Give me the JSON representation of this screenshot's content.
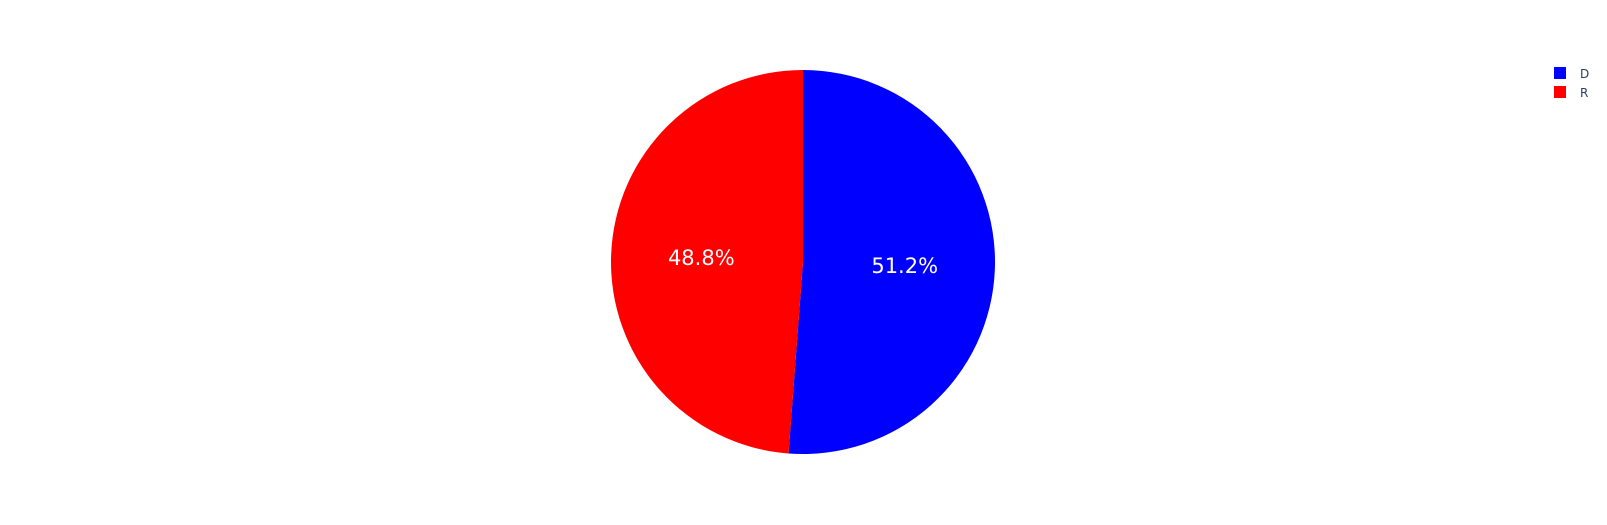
{
  "chart_data": {
    "type": "pie",
    "title": "",
    "slices": [
      {
        "label": "D",
        "value": 51.2,
        "color": "#0000ff",
        "text": "51.2%"
      },
      {
        "label": "R",
        "value": 48.8,
        "color": "#ff0000",
        "text": "48.8%"
      }
    ],
    "direction": "clockwise",
    "start": "top",
    "legend": {
      "placement": "top-right",
      "items": [
        "D",
        "R"
      ]
    }
  }
}
